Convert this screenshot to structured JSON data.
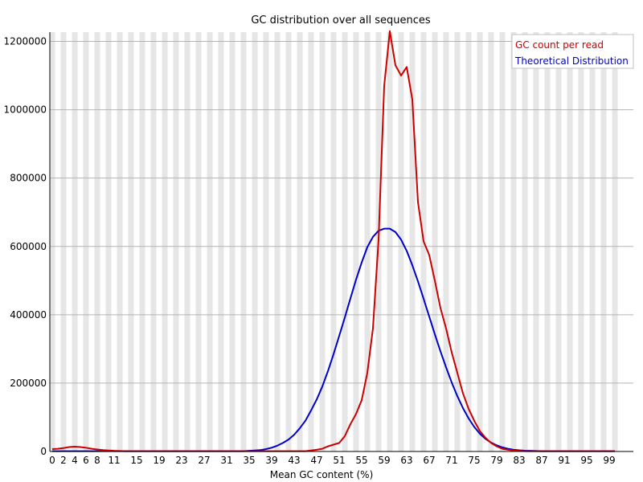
{
  "chart_data": {
    "type": "line",
    "title": "GC distribution over all sequences",
    "xlabel": "Mean GC content (%)",
    "ylabel": "",
    "xlim": [
      0,
      100
    ],
    "ylim": [
      0,
      1220000
    ],
    "x_ticks": [
      0,
      2,
      4,
      6,
      8,
      11,
      15,
      19,
      23,
      27,
      31,
      35,
      39,
      43,
      47,
      51,
      55,
      59,
      63,
      67,
      71,
      75,
      79,
      83,
      87,
      91,
      95,
      99
    ],
    "y_ticks": [
      0,
      200000,
      400000,
      600000,
      800000,
      1000000,
      1200000
    ],
    "grid": "alternating vertical bands, horizontal gridlines",
    "legend_position": "top-right",
    "series": [
      {
        "name": "GC count per read",
        "color": "#cc0000",
        "x": [
          0,
          1,
          2,
          3,
          4,
          5,
          6,
          7,
          8,
          9,
          10,
          11,
          12,
          13,
          14,
          15,
          16,
          17,
          18,
          19,
          20,
          21,
          22,
          23,
          24,
          25,
          26,
          27,
          28,
          29,
          30,
          31,
          32,
          33,
          34,
          35,
          36,
          37,
          38,
          39,
          40,
          41,
          42,
          43,
          44,
          45,
          46,
          47,
          48,
          49,
          50,
          51,
          52,
          53,
          54,
          55,
          56,
          57,
          58,
          59,
          60,
          61,
          62,
          63,
          64,
          65,
          66,
          67,
          68,
          69,
          70,
          71,
          72,
          73,
          74,
          75,
          76,
          77,
          78,
          79,
          80,
          81,
          82,
          83,
          84,
          85,
          86,
          87,
          88,
          89,
          90,
          91,
          92,
          93,
          94,
          95,
          96,
          97,
          98,
          99,
          100
        ],
        "y": [
          7000,
          8000,
          10000,
          13000,
          14000,
          13000,
          11000,
          8000,
          6000,
          4000,
          3000,
          2000,
          1500,
          1000,
          1000,
          1000,
          1000,
          1000,
          1000,
          1000,
          1000,
          1000,
          1000,
          1000,
          1000,
          1000,
          1000,
          1000,
          1000,
          1000,
          1000,
          1000,
          1000,
          1000,
          1000,
          1000,
          1000,
          1000,
          1000,
          1000,
          1000,
          1000,
          1000,
          1000,
          1000,
          1000,
          3000,
          5000,
          8000,
          15000,
          20000,
          25000,
          45000,
          80000,
          110000,
          150000,
          230000,
          360000,
          620000,
          1070000,
          1230000,
          1130000,
          1100000,
          1125000,
          1030000,
          730000,
          615000,
          575000,
          500000,
          420000,
          360000,
          290000,
          230000,
          170000,
          125000,
          90000,
          60000,
          40000,
          25000,
          15000,
          8000,
          5000,
          3000,
          2000,
          1000,
          1000,
          1000,
          1000,
          1000,
          1000,
          1000,
          1000,
          1000,
          1000,
          1000,
          1000,
          1000,
          1000,
          1000,
          1000,
          1000
        ]
      },
      {
        "name": "Theoretical Distribution",
        "color": "#0000cc",
        "x": [
          0,
          1,
          2,
          3,
          4,
          5,
          6,
          7,
          8,
          9,
          10,
          11,
          12,
          13,
          14,
          15,
          16,
          17,
          18,
          19,
          20,
          21,
          22,
          23,
          24,
          25,
          26,
          27,
          28,
          29,
          30,
          31,
          32,
          33,
          34,
          35,
          36,
          37,
          38,
          39,
          40,
          41,
          42,
          43,
          44,
          45,
          46,
          47,
          48,
          49,
          50,
          51,
          52,
          53,
          54,
          55,
          56,
          57,
          58,
          59,
          60,
          61,
          62,
          63,
          64,
          65,
          66,
          67,
          68,
          69,
          70,
          71,
          72,
          73,
          74,
          75,
          76,
          77,
          78,
          79,
          80,
          81,
          82,
          83,
          84,
          85,
          86,
          87,
          88,
          89,
          90,
          91,
          92,
          93,
          94,
          95,
          96,
          97,
          98,
          99,
          100
        ],
        "y": [
          1000,
          1000,
          1000,
          1000,
          1000,
          1000,
          1000,
          1000,
          1000,
          1000,
          1000,
          1000,
          1000,
          1000,
          1000,
          1000,
          1000,
          1000,
          1000,
          1000,
          1000,
          1000,
          1000,
          1000,
          1000,
          1000,
          1000,
          1000,
          1000,
          1000,
          1000,
          1000,
          1000,
          1000,
          1000,
          2000,
          3000,
          4000,
          7000,
          11000,
          17000,
          25000,
          35000,
          49000,
          68000,
          90000,
          120000,
          152000,
          190000,
          235000,
          285000,
          338000,
          392000,
          448000,
          503000,
          553000,
          598000,
          628000,
          646000,
          652000,
          652000,
          642000,
          620000,
          587000,
          545000,
          498000,
          447000,
          395000,
          343000,
          293000,
          246000,
          202000,
          162000,
          127000,
          97000,
          72000,
          52000,
          37000,
          26000,
          18000,
          12000,
          8000,
          5000,
          3500,
          2500,
          2000,
          1500,
          1000,
          1000,
          1000,
          1000,
          1000,
          1000,
          1000,
          1000,
          1000,
          1000,
          1000,
          1000,
          1000,
          1000
        ]
      }
    ]
  }
}
